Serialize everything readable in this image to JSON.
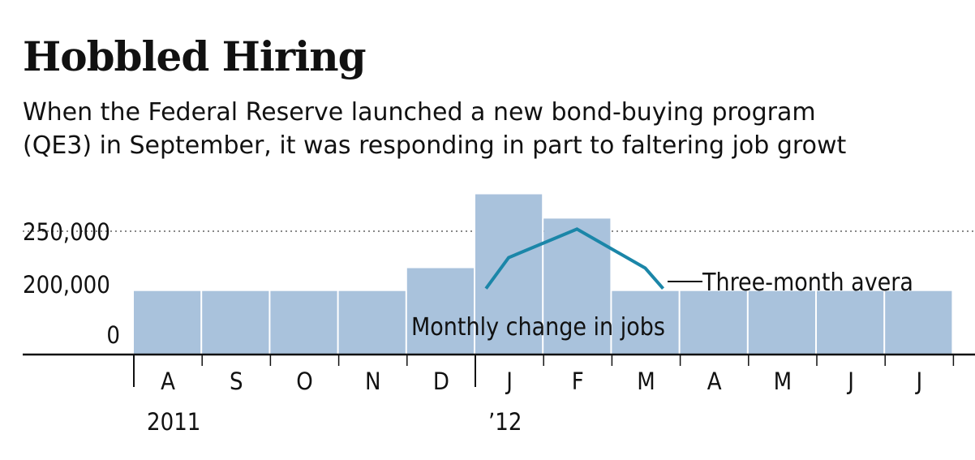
{
  "chart_data": {
    "type": "bar",
    "title": "Hobbled Hiring",
    "subtitle_lines": [
      "When the Federal Reserve launched a new bond-buying program",
      "(QE3) in September, it was responding in part to faltering job growt"
    ],
    "categories": [
      "A",
      "S",
      "O",
      "N",
      "D",
      "J",
      "F",
      "M",
      "A",
      "M",
      "J",
      "J"
    ],
    "year_labels": [
      {
        "category_index": 0,
        "label": "2011"
      },
      {
        "category_index": 5,
        "label": "’12"
      }
    ],
    "y_tick_labels": [
      {
        "value": 250000,
        "label": "250,000"
      },
      {
        "value": 200000,
        "label": "200,000"
      },
      {
        "value": 0,
        "label": "0"
      }
    ],
    "series": [
      {
        "name": "Monthly change in jobs",
        "type": "bar",
        "values": [
          180000,
          180000,
          180000,
          180000,
          215000,
          285000,
          262000,
          180000,
          180000,
          180000,
          180000,
          180000
        ]
      },
      {
        "name": "Three-month average",
        "type": "line",
        "values": [
          null,
          null,
          null,
          null,
          null,
          225000,
          252000,
          215000,
          null,
          null,
          null,
          null
        ]
      }
    ],
    "line_label": "Three-month avera",
    "bar_label": "Monthly change in jobs",
    "colors": {
      "bar": "#a9c2dc",
      "line": "#1b86a8",
      "text": "#111111",
      "grid": "#888888"
    },
    "grid": true
  }
}
